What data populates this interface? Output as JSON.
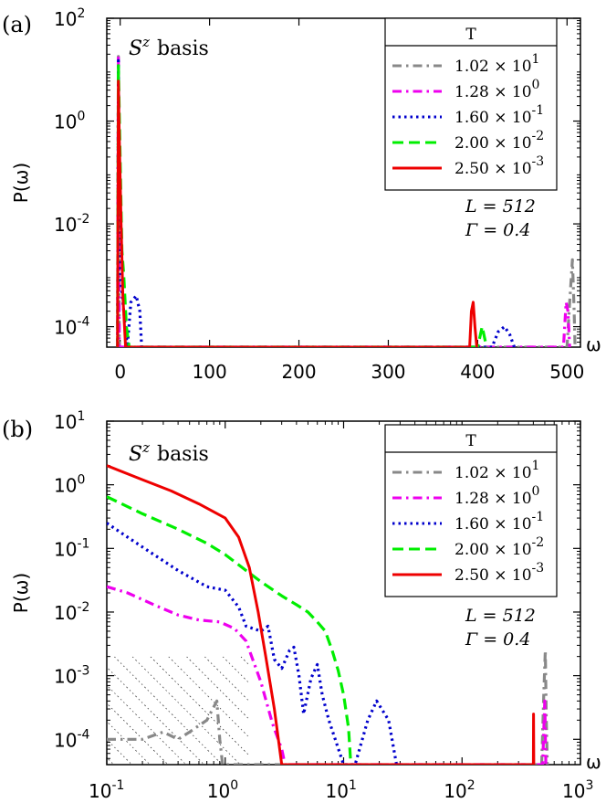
{
  "chart_data": [
    {
      "panel": "(a)",
      "type": "line",
      "annotation": "S^z basis",
      "annotation_main": "S",
      "annotation_sup": "z",
      "annotation_rest": "basis",
      "params": [
        "L = 512",
        "Γ = 0.4"
      ],
      "xlabel": "ω",
      "ylabel": "P(ω)",
      "xscale": "linear",
      "yscale": "log",
      "xlim": [
        -15,
        515
      ],
      "ylim": [
        4e-05,
        100
      ],
      "xticks": [
        "0",
        "100",
        "200",
        "300",
        "400",
        "500"
      ],
      "xtick_values": [
        0,
        100,
        200,
        300,
        400,
        500
      ],
      "yticks": [
        {
          "base": "10",
          "exp": "2",
          "value": 100
        },
        {
          "base": "10",
          "exp": "0",
          "value": 1
        },
        {
          "base": "10",
          "exp": "-2",
          "value": 0.01
        },
        {
          "base": "10",
          "exp": "-4",
          "value": 0.0001
        }
      ],
      "legend": {
        "title": "T",
        "position": "top-right"
      },
      "series": [
        {
          "name": "1.02 × 10^1",
          "label_mantissa": "1.02 × 10",
          "label_exp": "1",
          "color": "#888888",
          "dash": "dashdot",
          "points": [
            [
              -3,
              4e-05
            ],
            [
              -2,
              18
            ],
            [
              -1,
              4e-05
            ],
            [
              500,
              4e-05
            ],
            [
              503,
              0.0003
            ],
            [
              506,
              0.002
            ],
            [
              508,
              0.0002
            ],
            [
              509,
              4e-05
            ]
          ]
        },
        {
          "name": "1.28 × 10^0",
          "label_mantissa": "1.28 × 10",
          "label_exp": "0",
          "color": "#ee00ee",
          "dash": "dashdot",
          "points": [
            [
              -3,
              4e-05
            ],
            [
              -2,
              17
            ],
            [
              -1,
              4e-05
            ],
            [
              496,
              4e-05
            ],
            [
              499,
              0.0003
            ],
            [
              501,
              0.0002
            ],
            [
              503,
              4e-05
            ]
          ]
        },
        {
          "name": "1.60 × 10^-1",
          "label_mantissa": "1.60 × 10",
          "label_exp": "-1",
          "color": "#0000cc",
          "dash": "dot",
          "points": [
            [
              -3,
              4e-05
            ],
            [
              -2,
              15
            ],
            [
              0,
              0.001
            ],
            [
              4,
              0.0002
            ],
            [
              8,
              4e-05
            ],
            [
              12,
              0.0003
            ],
            [
              18,
              0.0004
            ],
            [
              22,
              0.0002
            ],
            [
              24,
              4e-05
            ],
            [
              416,
              4e-05
            ],
            [
              423,
              8e-05
            ],
            [
              430,
              0.0001
            ],
            [
              436,
              7e-05
            ],
            [
              441,
              4e-05
            ]
          ]
        },
        {
          "name": "2.00 × 10^-2",
          "label_mantissa": "2.00 × 10",
          "label_exp": "-2",
          "color": "#00ee00",
          "dash": "dashed",
          "points": [
            [
              -3,
              4e-05
            ],
            [
              -2,
              12
            ],
            [
              2,
              0.003
            ],
            [
              4,
              0.001
            ],
            [
              7,
              0.0001
            ],
            [
              10,
              4e-05
            ],
            [
              400,
              4e-05
            ],
            [
              405,
              0.0001
            ],
            [
              410,
              4e-05
            ]
          ]
        },
        {
          "name": "2.50 × 10^-3",
          "label_mantissa": "2.50 × 10",
          "label_exp": "-3",
          "color": "#ee0000",
          "dash": "solid",
          "points": [
            [
              -3,
              4e-05
            ],
            [
              -2,
              6
            ],
            [
              -1,
              0.5
            ],
            [
              1,
              0.01
            ],
            [
              3,
              0.0004
            ],
            [
              6,
              4e-05
            ],
            [
              391,
              4e-05
            ],
            [
              393,
              0.0002
            ],
            [
              395,
              0.0003
            ],
            [
              397,
              0.0001
            ],
            [
              399,
              4e-05
            ]
          ]
        }
      ]
    },
    {
      "panel": "(b)",
      "type": "line",
      "annotation": "S^z basis",
      "annotation_main": "S",
      "annotation_sup": "z",
      "annotation_rest": "basis",
      "params": [
        "L = 512",
        "Γ = 0.4"
      ],
      "xlabel": "ω",
      "ylabel": "P(ω)",
      "xscale": "log",
      "yscale": "log",
      "xlim": [
        0.1,
        1000
      ],
      "ylim": [
        4e-05,
        10
      ],
      "xticks": [
        {
          "base": "10",
          "exp": "-1",
          "value": 0.1
        },
        {
          "base": "10",
          "exp": "0",
          "value": 1
        },
        {
          "base": "10",
          "exp": "1",
          "value": 10
        },
        {
          "base": "10",
          "exp": "2",
          "value": 100
        },
        {
          "base": "10",
          "exp": "3",
          "value": 1000
        }
      ],
      "yticks": [
        {
          "base": "10",
          "exp": "1",
          "value": 10
        },
        {
          "base": "10",
          "exp": "0",
          "value": 1
        },
        {
          "base": "10",
          "exp": "-1",
          "value": 0.1
        },
        {
          "base": "10",
          "exp": "-2",
          "value": 0.01
        },
        {
          "base": "10",
          "exp": "-3",
          "value": 0.001
        },
        {
          "base": "10",
          "exp": "-4",
          "value": 0.0001
        }
      ],
      "hatched_region": {
        "x": [
          0.1,
          1.6
        ],
        "y": [
          4e-05,
          0.002
        ]
      },
      "legend": {
        "title": "T",
        "position": "top-right"
      },
      "series": [
        {
          "name": "1.02 × 10^1",
          "label_mantissa": "1.02 × 10",
          "label_exp": "1",
          "color": "#888888",
          "dash": "dashdot",
          "points": [
            [
              0.1,
              0.0001
            ],
            [
              0.2,
              0.0001
            ],
            [
              0.3,
              0.00013
            ],
            [
              0.4,
              0.0001
            ],
            [
              0.5,
              0.00013
            ],
            [
              0.7,
              0.0002
            ],
            [
              0.85,
              0.0004
            ],
            [
              0.9,
              0.0001
            ],
            [
              0.95,
              4e-05
            ],
            [
              470,
              4e-05
            ],
            [
              490,
              0.0005
            ],
            [
              505,
              0.0025
            ],
            [
              515,
              0.0002
            ],
            [
              525,
              4e-05
            ]
          ]
        },
        {
          "name": "1.28 × 10^0",
          "label_mantissa": "1.28 × 10",
          "label_exp": "0",
          "color": "#ee00ee",
          "dash": "dashdot",
          "points": [
            [
              0.1,
              0.025
            ],
            [
              0.15,
              0.02
            ],
            [
              0.25,
              0.013
            ],
            [
              0.4,
              0.009
            ],
            [
              0.6,
              0.0075
            ],
            [
              0.9,
              0.007
            ],
            [
              1.2,
              0.0055
            ],
            [
              1.5,
              0.0035
            ],
            [
              2,
              0.0008
            ],
            [
              2.5,
              0.00018
            ],
            [
              3,
              7e-05
            ],
            [
              3.2,
              4e-05
            ],
            [
              480,
              4e-05
            ],
            [
              500,
              0.0004
            ],
            [
              510,
              4e-05
            ]
          ]
        },
        {
          "name": "1.60 × 10^-1",
          "label_mantissa": "1.60 × 10",
          "label_exp": "-1",
          "color": "#0000cc",
          "dash": "dot",
          "points": [
            [
              0.1,
              0.25
            ],
            [
              0.15,
              0.15
            ],
            [
              0.25,
              0.08
            ],
            [
              0.4,
              0.045
            ],
            [
              0.7,
              0.025
            ],
            [
              1,
              0.022
            ],
            [
              1.3,
              0.012
            ],
            [
              1.5,
              0.006
            ],
            [
              2,
              0.005
            ],
            [
              2.3,
              0.006
            ],
            [
              2.6,
              0.0018
            ],
            [
              3,
              0.0013
            ],
            [
              3.5,
              0.0025
            ],
            [
              3.8,
              0.0028
            ],
            [
              4.2,
              0.001
            ],
            [
              4.6,
              0.00025
            ],
            [
              5.3,
              0.0009
            ],
            [
              6,
              0.0015
            ],
            [
              6.6,
              0.0005
            ],
            [
              7.5,
              0.0002
            ],
            [
              8.5,
              0.0001
            ],
            [
              10,
              4e-05
            ],
            [
              12.5,
              4e-05
            ],
            [
              16,
              0.0002
            ],
            [
              19,
              0.0004
            ],
            [
              24,
              0.0002
            ],
            [
              28,
              4e-05
            ]
          ]
        },
        {
          "name": "2.00 × 10^-2",
          "label_mantissa": "2.00 × 10",
          "label_exp": "-2",
          "color": "#00ee00",
          "dash": "dashed",
          "points": [
            [
              0.1,
              0.65
            ],
            [
              0.2,
              0.35
            ],
            [
              0.4,
              0.2
            ],
            [
              0.7,
              0.12
            ],
            [
              1,
              0.08
            ],
            [
              1.5,
              0.045
            ],
            [
              2,
              0.03
            ],
            [
              3,
              0.018
            ],
            [
              4,
              0.013
            ],
            [
              5,
              0.01
            ],
            [
              6,
              0.007
            ],
            [
              7,
              0.005
            ],
            [
              8,
              0.0025
            ],
            [
              9,
              0.0012
            ],
            [
              10,
              0.0005
            ],
            [
              11,
              0.00015
            ],
            [
              11.5,
              4e-05
            ]
          ]
        },
        {
          "name": "2.50 × 10^-3",
          "label_mantissa": "2.50 × 10",
          "label_exp": "-3",
          "color": "#ee0000",
          "dash": "solid",
          "points": [
            [
              0.1,
              2
            ],
            [
              0.2,
              1.2
            ],
            [
              0.35,
              0.8
            ],
            [
              0.6,
              0.5
            ],
            [
              1,
              0.3
            ],
            [
              1.3,
              0.15
            ],
            [
              1.6,
              0.05
            ],
            [
              1.9,
              0.01
            ],
            [
              2.2,
              0.002
            ],
            [
              2.6,
              0.0003
            ],
            [
              3,
              4e-05
            ],
            [
              400,
              4e-05
            ],
            [
              402,
              0.00025
            ],
            [
              404,
              4e-05
            ]
          ]
        }
      ]
    }
  ]
}
